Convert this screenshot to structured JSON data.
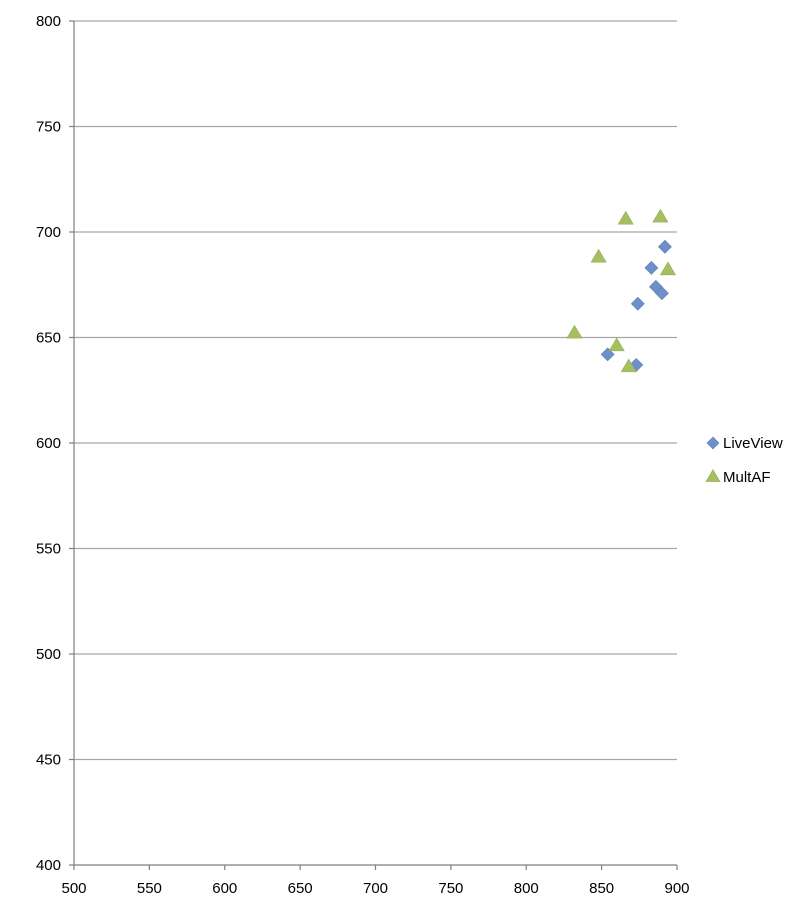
{
  "chart_data": {
    "type": "scatter",
    "title": "",
    "xlabel": "",
    "ylabel": "",
    "xlim": [
      500,
      900
    ],
    "ylim": [
      400,
      800
    ],
    "xticks": [
      500,
      550,
      600,
      650,
      700,
      750,
      800,
      850,
      900
    ],
    "yticks": [
      400,
      450,
      500,
      550,
      600,
      650,
      700,
      750,
      800
    ],
    "grid": "horizontal",
    "legend_position": "right",
    "series": [
      {
        "name": "LiveView",
        "marker": "diamond",
        "color": "#6f8fc9",
        "points": [
          {
            "x": 892,
            "y": 693
          },
          {
            "x": 883,
            "y": 683
          },
          {
            "x": 886,
            "y": 674
          },
          {
            "x": 890,
            "y": 671
          },
          {
            "x": 874,
            "y": 666
          },
          {
            "x": 854,
            "y": 642
          },
          {
            "x": 873,
            "y": 637
          }
        ]
      },
      {
        "name": "MultAF",
        "marker": "triangle",
        "color": "#a6bf60",
        "points": [
          {
            "x": 866,
            "y": 706
          },
          {
            "x": 889,
            "y": 707
          },
          {
            "x": 848,
            "y": 688
          },
          {
            "x": 894,
            "y": 682
          },
          {
            "x": 832,
            "y": 652
          },
          {
            "x": 860,
            "y": 646
          },
          {
            "x": 868,
            "y": 636
          }
        ]
      }
    ]
  }
}
